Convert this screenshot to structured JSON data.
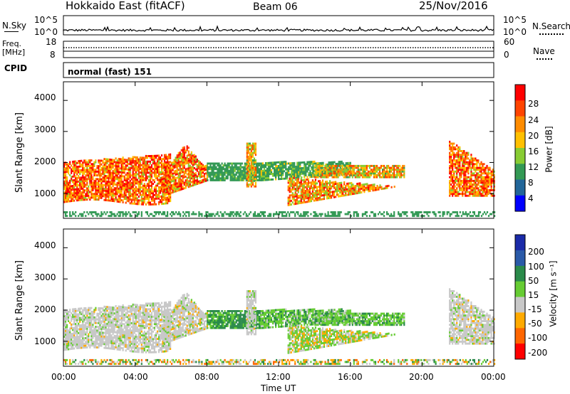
{
  "header": {
    "title": "Hokkaido East (fitACF)",
    "beam": "Beam 06",
    "date": "25/Nov/2016"
  },
  "noise_panel": {
    "left_label": "N.Sky",
    "right_label": "N.Search",
    "left_ticks": [
      "10^5",
      "10^0"
    ],
    "right_ticks": [
      "10^5",
      "10^0"
    ]
  },
  "freq_panel": {
    "left_label_line1": "Freq.",
    "left_label_line2": "[MHz]",
    "right_label": "Nave",
    "left_ticks": [
      "18",
      "8"
    ],
    "right_ticks": [
      "60",
      "0"
    ]
  },
  "cpid_panel": {
    "label": "CPID",
    "text": "normal (fast) 151"
  },
  "chart_data": [
    {
      "type": "heatmap",
      "quantity": "power",
      "ylabel": "Slant Range [km]",
      "xlabel": "",
      "ylim": [
        200,
        4600
      ],
      "xlim": [
        0,
        24
      ],
      "yticks": [
        "1000",
        "2000",
        "3000",
        "4000"
      ],
      "xticks": [
        "00:00",
        "04:00",
        "08:00",
        "12:00",
        "16:00",
        "20:00",
        "00:00"
      ],
      "colorbar": {
        "label": "Power [dB]",
        "ticks": [
          "28",
          "24",
          "20",
          "16",
          "12",
          "8",
          "4"
        ],
        "colors": [
          "#ff0000",
          "#ff4400",
          "#ff8c00",
          "#ffc000",
          "#88cc33",
          "#339955",
          "#226699",
          "#0000ff"
        ]
      }
    },
    {
      "type": "heatmap",
      "quantity": "velocity",
      "ylabel": "Slant Range [km]",
      "xlabel": "Time UT",
      "ylim": [
        200,
        4600
      ],
      "xlim": [
        0,
        24
      ],
      "yticks": [
        "1000",
        "2000",
        "3000",
        "4000"
      ],
      "xticks": [
        "00:00",
        "04:00",
        "08:00",
        "12:00",
        "16:00",
        "20:00",
        "00:00"
      ],
      "colorbar": {
        "label": "Velocity [m s⁻¹]",
        "ticks": [
          "200",
          "100",
          "50",
          "15",
          "-15",
          "-50",
          "-100",
          "-200"
        ],
        "colors": [
          "#1a2aa8",
          "#2a5aa8",
          "#2a8a4a",
          "#66cc33",
          "#c8c8c8",
          "#ffaa00",
          "#ff6600",
          "#ff0000"
        ]
      }
    }
  ]
}
